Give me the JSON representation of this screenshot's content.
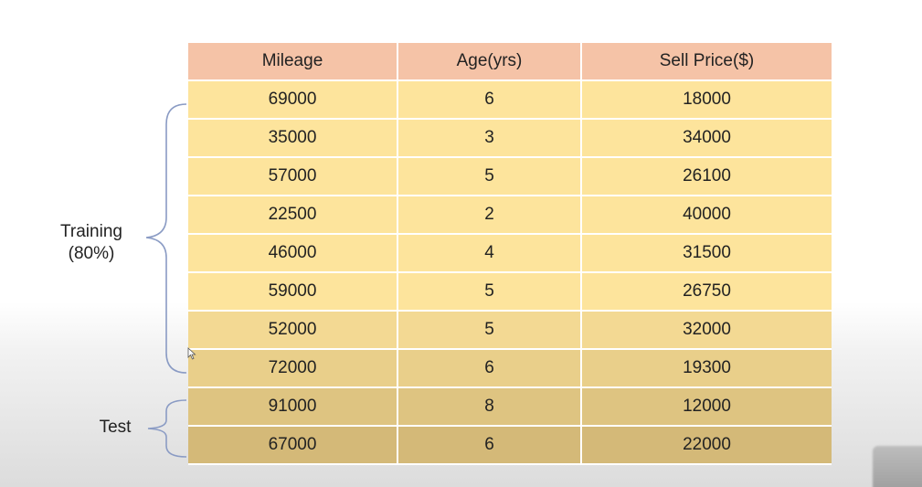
{
  "table": {
    "headers": [
      "Mileage",
      "Age(yrs)",
      "Sell Price($)"
    ],
    "rows": [
      [
        "69000",
        "6",
        "18000"
      ],
      [
        "35000",
        "3",
        "34000"
      ],
      [
        "57000",
        "5",
        "26100"
      ],
      [
        "22500",
        "2",
        "40000"
      ],
      [
        "46000",
        "4",
        "31500"
      ],
      [
        "59000",
        "5",
        "26750"
      ],
      [
        "52000",
        "5",
        "32000"
      ],
      [
        "72000",
        "6",
        "19300"
      ],
      [
        "91000",
        "8",
        "12000"
      ],
      [
        "67000",
        "6",
        "22000"
      ]
    ]
  },
  "groups": {
    "training": {
      "line1": "Training",
      "line2": "(80%)"
    },
    "test": {
      "label": "Test"
    }
  },
  "colors": {
    "header": "#f5c3a7",
    "row_top": "#fde49c",
    "row_bottom": "#d4b978",
    "brace": "#8a9bc4"
  }
}
